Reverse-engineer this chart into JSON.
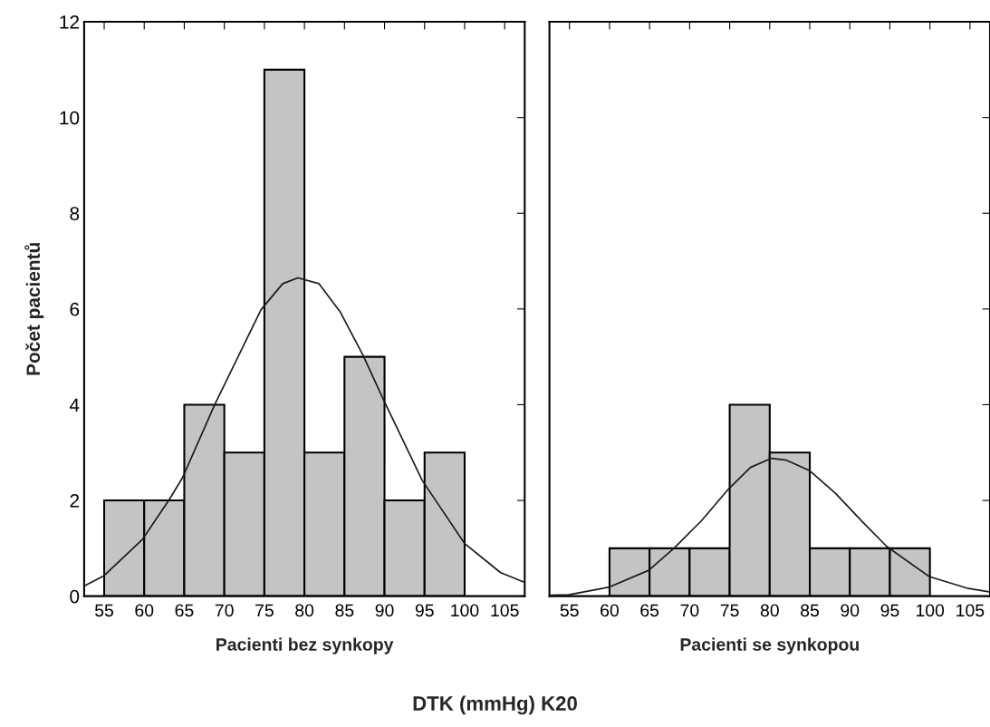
{
  "chart_data": [
    {
      "type": "histogram",
      "xlabel": "Pacienti bez synkopy",
      "ylabel": "Počet pacientů",
      "annotations": [
        "DTK (mmHg) K20"
      ],
      "bins": [
        55,
        60,
        65,
        70,
        75,
        80,
        85,
        90,
        95,
        100
      ],
      "values": [
        2,
        2,
        4,
        3,
        11,
        3,
        5,
        2,
        3
      ],
      "color": "#c4c4c4",
      "series": [
        {
          "type": "line",
          "color": "#1a1a1a",
          "x": [
            52.5,
            55.0,
            59.8,
            63.1,
            64.8,
            68.8,
            72.0,
            74.6,
            77.3,
            79.2,
            81.8,
            84.5,
            87.3,
            89.8,
            94.7,
            100.0,
            104.5,
            107.3
          ],
          "values": [
            0.21,
            0.43,
            1.19,
            2.01,
            2.48,
            4.0,
            5.1,
            5.99,
            6.53,
            6.65,
            6.53,
            5.93,
            5.04,
            4.13,
            2.42,
            1.1,
            0.49,
            0.3
          ]
        }
      ],
      "xlim": [
        52.5,
        107.5
      ],
      "xticks": [
        55,
        60,
        65,
        70,
        75,
        80,
        85,
        90,
        95,
        100,
        105
      ],
      "ylim": [
        0,
        12
      ],
      "yticks": [
        0,
        2,
        4,
        6,
        8,
        10,
        12
      ]
    },
    {
      "type": "histogram",
      "xlabel": "Pacienti se synkopou",
      "tick_labels": "x",
      "bins": [
        60,
        65,
        70,
        75,
        80,
        85,
        90,
        95,
        100
      ],
      "values": [
        1,
        1,
        1,
        4,
        3,
        1,
        1,
        1
      ],
      "color": "#c4c4c4",
      "series": [
        {
          "type": "line",
          "color": "#1a1a1a",
          "x": [
            52.5,
            54.9,
            60.0,
            64.9,
            68.1,
            71.5,
            74.7,
            77.6,
            80.2,
            82.1,
            85.0,
            88.2,
            91.6,
            94.6,
            99.9,
            104.8,
            107.4
          ],
          "values": [
            0.02,
            0.03,
            0.19,
            0.54,
            1.01,
            1.58,
            2.21,
            2.69,
            2.88,
            2.84,
            2.62,
            2.15,
            1.55,
            1.04,
            0.41,
            0.16,
            0.09
          ]
        }
      ],
      "xlim": [
        52.5,
        107.5
      ],
      "xticks": [
        55,
        60,
        65,
        70,
        75,
        80,
        85,
        90,
        95,
        100,
        105
      ],
      "ylim": [
        0,
        12
      ],
      "yticks": [
        0,
        2,
        4,
        6,
        8,
        10,
        12
      ]
    }
  ]
}
